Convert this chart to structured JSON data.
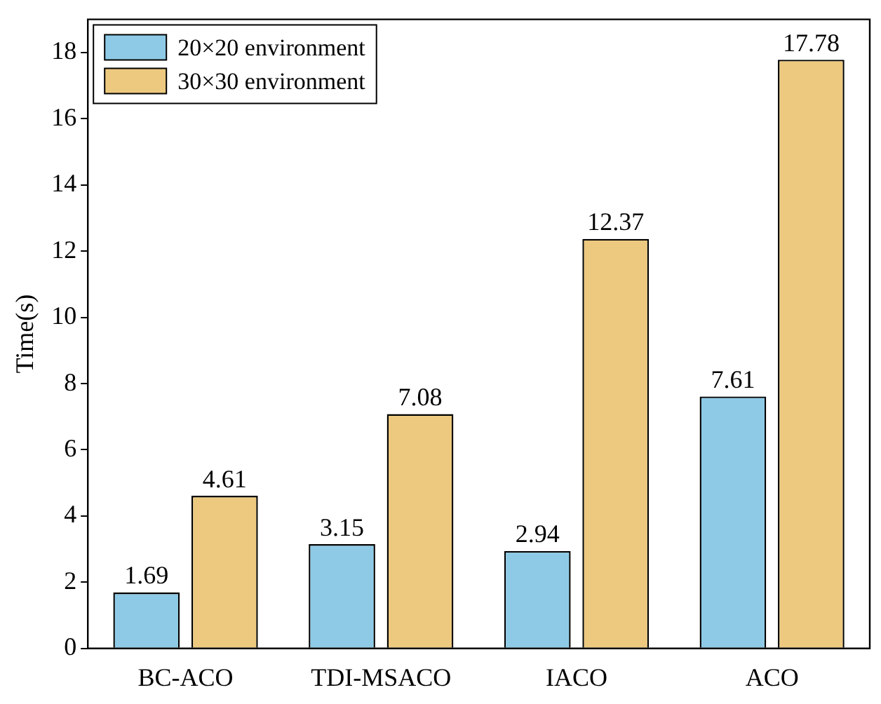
{
  "chart_data": {
    "type": "bar",
    "ylabel": "Time(s)",
    "categories": [
      "BC-ACO",
      "TDI-MSACO",
      "IACO",
      "ACO"
    ],
    "series": [
      {
        "name": "20×20 environment",
        "color": "#8ecae6",
        "values": [
          1.69,
          3.15,
          2.94,
          7.61
        ]
      },
      {
        "name": "30×30 environment",
        "color": "#ecc97f",
        "values": [
          4.61,
          7.08,
          12.37,
          17.78
        ]
      }
    ],
    "ylim": [
      0,
      19
    ],
    "yticks": [
      0,
      2,
      4,
      6,
      8,
      10,
      12,
      14,
      16,
      18
    ],
    "data_labels": true,
    "legend": "top left",
    "grid": false
  }
}
